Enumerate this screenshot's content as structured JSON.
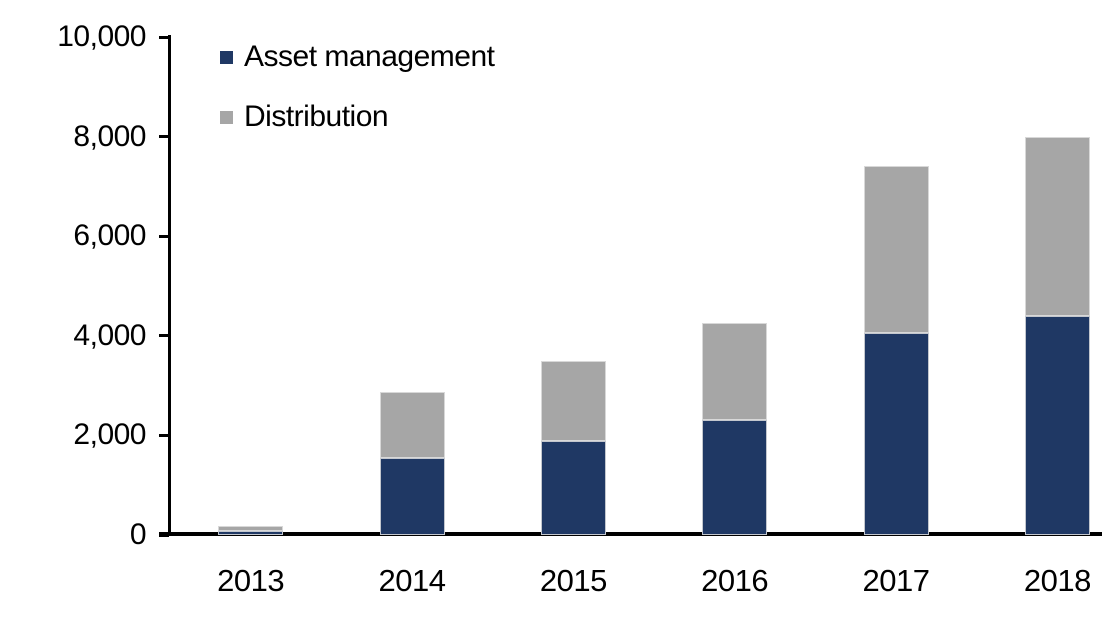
{
  "chart_data": {
    "type": "bar",
    "stacked": true,
    "title": "",
    "xlabel": "",
    "ylabel": "",
    "categories": [
      "2013",
      "2014",
      "2015",
      "2016",
      "2017",
      "2018"
    ],
    "series": [
      {
        "name": "Asset management",
        "color": "#1F3864",
        "values": [
          80,
          1540,
          1890,
          2300,
          4050,
          4400
        ]
      },
      {
        "name": "Distribution",
        "color": "#A6A6A6",
        "values": [
          100,
          1330,
          1610,
          1950,
          3350,
          3600
        ]
      }
    ],
    "ylim": [
      0,
      10000
    ],
    "yticks": [
      0,
      2000,
      4000,
      6000,
      8000,
      10000
    ],
    "ytick_labels": [
      "0",
      "2,000",
      "4,000",
      "6,000",
      "8,000",
      "10,000"
    ],
    "grid": false,
    "legend_position": "top-left-inside",
    "axis_color": "#000000",
    "background_color": "#FFFFFF"
  }
}
